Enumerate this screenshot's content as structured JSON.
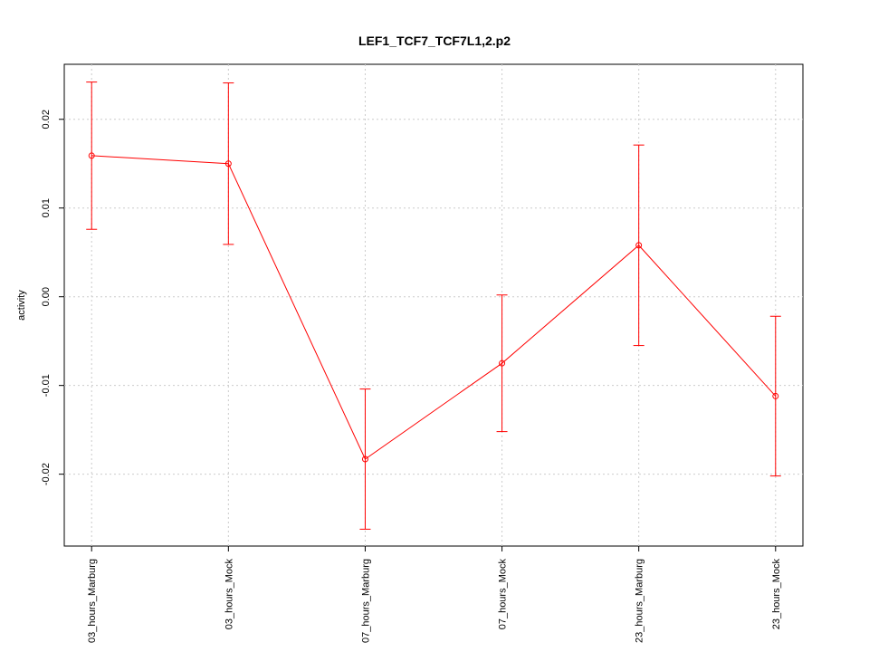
{
  "chart_data": {
    "type": "line",
    "title": "LEF1_TCF7_TCF7L1,2.p2",
    "y_label": "activity",
    "categories": [
      "03_hours_Marburg",
      "03_hours_Mock",
      "07_hours_Marburg",
      "07_hours_Mock",
      "23_hours_Marburg",
      "23_hours_Mock"
    ],
    "series": [
      {
        "color": "#ff0000",
        "values": [
          0.0159,
          0.015,
          -0.0183,
          -0.0075,
          0.0058,
          -0.0112
        ],
        "errors": [
          0.0083,
          0.0091,
          0.0079,
          0.0077,
          0.0113,
          0.009
        ]
      }
    ],
    "ylim": [
      -0.0281,
      0.0262
    ],
    "yticks": [
      -0.02,
      -0.01,
      {
        "value": 0,
        "label": "0.00"
      },
      0.01,
      0.02
    ],
    "grid": true
  }
}
